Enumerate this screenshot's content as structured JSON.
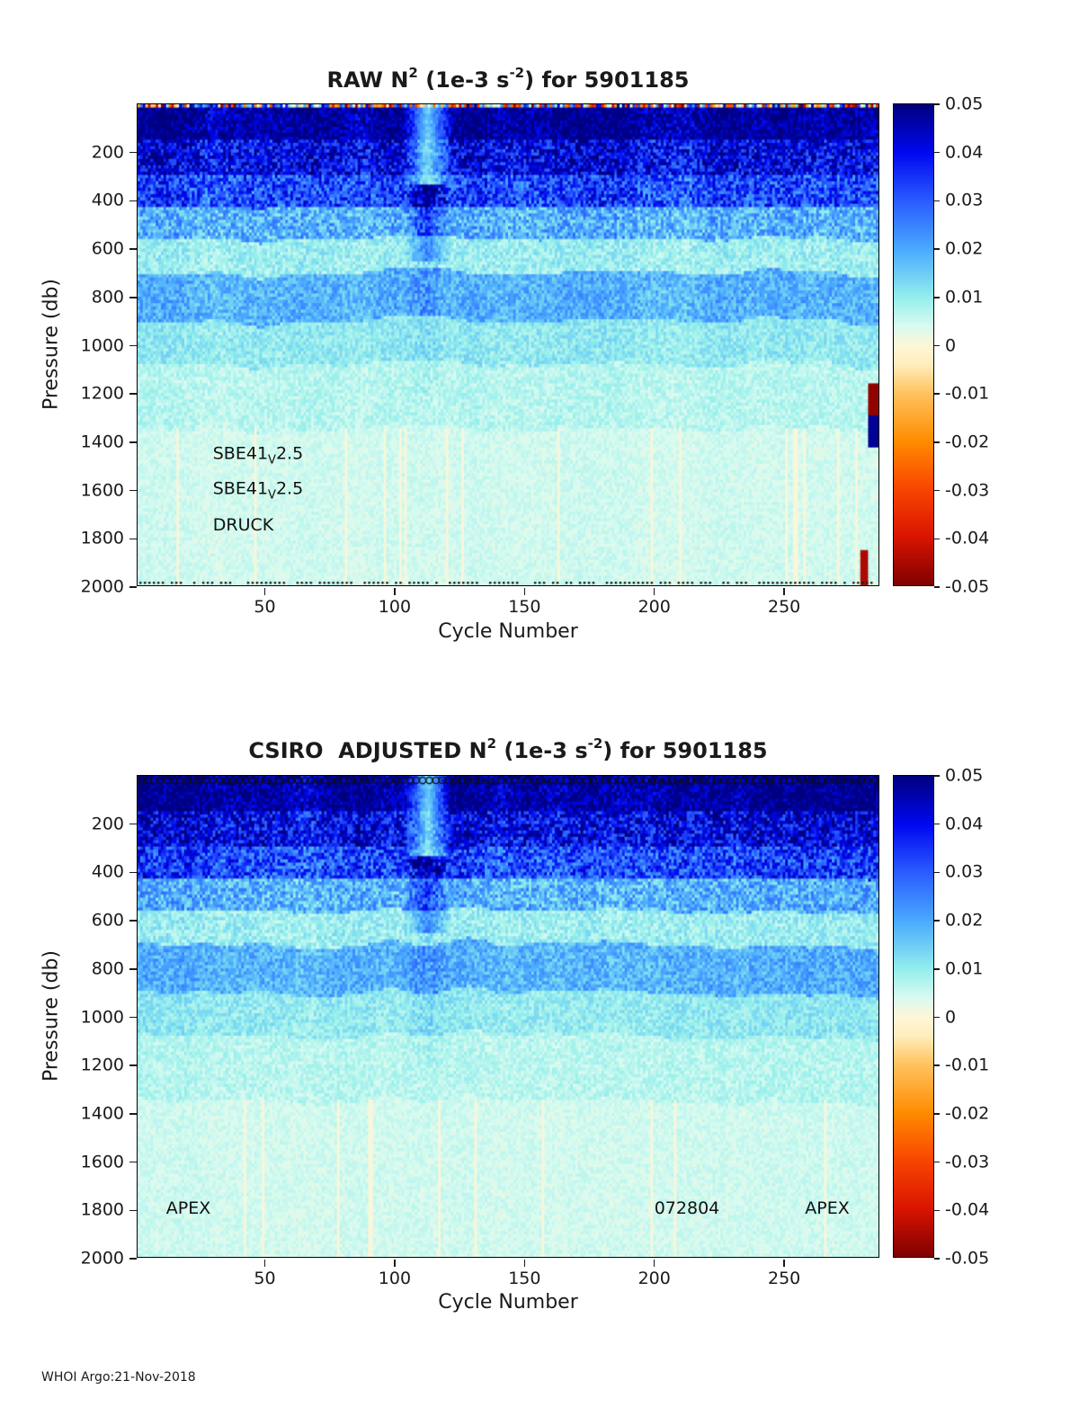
{
  "figure": {
    "footer": "WHOI Argo:21-Nov-2018"
  },
  "axes": {
    "x_label": "Cycle Number",
    "y_label": "Pressure (db)",
    "x_ticks": [
      50,
      100,
      150,
      200,
      250
    ],
    "x_range": [
      1,
      287
    ],
    "y_ticks": [
      200,
      400,
      600,
      800,
      1000,
      1200,
      1400,
      1600,
      1800,
      2000
    ],
    "y_range": [
      0,
      2000
    ]
  },
  "colorbar": {
    "vmin": -0.05,
    "vmax": 0.05,
    "ticks": [
      "0.05",
      "0.04",
      "0.03",
      "0.02",
      "0.01",
      "0",
      "-0.01",
      "-0.02",
      "-0.03",
      "-0.04",
      "-0.05"
    ]
  },
  "colormap": {
    "stops": [
      {
        "v": -0.05,
        "color": "#7f0000"
      },
      {
        "v": -0.04,
        "color": "#d81400"
      },
      {
        "v": -0.03,
        "color": "#f84400"
      },
      {
        "v": -0.02,
        "color": "#ff8c00"
      },
      {
        "v": -0.01,
        "color": "#ffc25e"
      },
      {
        "v": -0.004,
        "color": "#ffeebc"
      },
      {
        "v": 0.0,
        "color": "#fdf6d8"
      },
      {
        "v": 0.004,
        "color": "#d8fbf0"
      },
      {
        "v": 0.01,
        "color": "#93eeec"
      },
      {
        "v": 0.02,
        "color": "#4aaaff"
      },
      {
        "v": 0.03,
        "color": "#2a5cff"
      },
      {
        "v": 0.04,
        "color": "#0008f0"
      },
      {
        "v": 0.05,
        "color": "#00007f"
      }
    ]
  },
  "panels": [
    {
      "key": "raw",
      "title": {
        "prefix": "RAW N",
        "sup1": "2",
        "mid": " (1e-3 s",
        "sup2": "-2",
        "suffix": ") for 5901185"
      },
      "annotations": [
        {
          "name": "ctd-sensor-label-1",
          "parts": [
            {
              "t": "SBE41"
            },
            {
              "t": "V",
              "sub": true
            },
            {
              "t": "2.5"
            }
          ],
          "cycle": 30,
          "pressure": 1460
        },
        {
          "name": "ctd-sensor-label-2",
          "parts": [
            {
              "t": "SBE41"
            },
            {
              "t": "V",
              "sub": true
            },
            {
              "t": "2.5"
            }
          ],
          "cycle": 30,
          "pressure": 1605
        },
        {
          "name": "pressure-sensor-label",
          "parts": [
            {
              "t": "DRUCK"
            }
          ],
          "cycle": 30,
          "pressure": 1745
        }
      ]
    },
    {
      "key": "adjusted",
      "title": {
        "prefix": "CSIRO  ADJUSTED N",
        "sup1": "2",
        "mid": " (1e-3 s",
        "sup2": "-2",
        "suffix": ") for 5901185"
      },
      "annotations": [
        {
          "name": "float-type-label-left",
          "parts": [
            {
              "t": "APEX"
            }
          ],
          "cycle": 12,
          "pressure": 1795
        },
        {
          "name": "float-id-label",
          "parts": [
            {
              "t": "072804"
            }
          ],
          "cycle": 200,
          "pressure": 1795
        },
        {
          "name": "float-type-label-right",
          "parts": [
            {
              "t": "APEX"
            }
          ],
          "cycle": 258,
          "pressure": 1795
        }
      ]
    }
  ],
  "chart_data": [
    {
      "type": "heatmap",
      "title": "RAW N^2 (1e-3 s^-2) for 5901185",
      "x": {
        "label": "Cycle Number",
        "min": 1,
        "max": 287
      },
      "y": {
        "label": "Pressure (db)",
        "min": 0,
        "max": 2000,
        "inverted": true
      },
      "value_units": "1e-3 s^-2",
      "value_range": [
        -0.05,
        0.05
      ],
      "grid": false,
      "legend_position": "right-colorbar",
      "pressure_bands": [
        {
          "pressure": [
            0,
            18
          ],
          "mean": 0.0,
          "noise": 0.05,
          "surface": true
        },
        {
          "pressure": [
            18,
            150
          ],
          "mean": 0.046,
          "noise": 0.008
        },
        {
          "pressure": [
            150,
            300
          ],
          "mean": 0.039,
          "noise": 0.012
        },
        {
          "pressure": [
            300,
            430
          ],
          "mean": 0.031,
          "noise": 0.012
        },
        {
          "pressure": [
            430,
            560
          ],
          "mean": 0.018,
          "noise": 0.009
        },
        {
          "pressure": [
            560,
            700
          ],
          "mean": 0.009,
          "noise": 0.0045
        },
        {
          "pressure": [
            700,
            900
          ],
          "mean": 0.018,
          "noise": 0.006
        },
        {
          "pressure": [
            900,
            1080
          ],
          "mean": 0.01,
          "noise": 0.004
        },
        {
          "pressure": [
            1080,
            1350
          ],
          "mean": 0.0065,
          "noise": 0.003
        },
        {
          "pressure": [
            1350,
            2000
          ],
          "mean": 0.0045,
          "noise": 0.002
        }
      ],
      "features": [
        {
          "type": "column_anomaly",
          "cycles": [
            103,
            122
          ]
        },
        {
          "type": "mark",
          "cycles": [
            283,
            286
          ],
          "pressure": [
            1160,
            1290
          ],
          "value": -0.048
        },
        {
          "type": "mark",
          "cycles": [
            283,
            286
          ],
          "pressure": [
            1290,
            1430
          ],
          "value": 0.048
        },
        {
          "type": "mark",
          "cycles": [
            280,
            282
          ],
          "pressure": [
            1860,
            2000
          ],
          "value": -0.045
        }
      ],
      "bottom_dots": true,
      "cycle_markers_top": false
    },
    {
      "type": "heatmap",
      "title": "CSIRO ADJUSTED N^2 (1e-3 s^-2) for 5901185",
      "x": {
        "label": "Cycle Number",
        "min": 1,
        "max": 287
      },
      "y": {
        "label": "Pressure (db)",
        "min": 0,
        "max": 2000,
        "inverted": true
      },
      "value_units": "1e-3 s^-2",
      "value_range": [
        -0.05,
        0.05
      ],
      "grid": false,
      "legend_position": "right-colorbar",
      "pressure_bands": [
        {
          "pressure": [
            0,
            150
          ],
          "mean": 0.046,
          "noise": 0.008
        },
        {
          "pressure": [
            150,
            300
          ],
          "mean": 0.039,
          "noise": 0.012
        },
        {
          "pressure": [
            300,
            430
          ],
          "mean": 0.031,
          "noise": 0.012
        },
        {
          "pressure": [
            430,
            560
          ],
          "mean": 0.018,
          "noise": 0.009
        },
        {
          "pressure": [
            560,
            700
          ],
          "mean": 0.009,
          "noise": 0.0045
        },
        {
          "pressure": [
            700,
            900
          ],
          "mean": 0.018,
          "noise": 0.006
        },
        {
          "pressure": [
            900,
            1080
          ],
          "mean": 0.01,
          "noise": 0.004
        },
        {
          "pressure": [
            1080,
            1350
          ],
          "mean": 0.0065,
          "noise": 0.003
        },
        {
          "pressure": [
            1350,
            2000
          ],
          "mean": 0.0045,
          "noise": 0.002
        }
      ],
      "features": [
        {
          "type": "column_anomaly",
          "cycles": [
            103,
            122
          ]
        }
      ],
      "bottom_dots": false,
      "cycle_markers_top": true
    }
  ]
}
